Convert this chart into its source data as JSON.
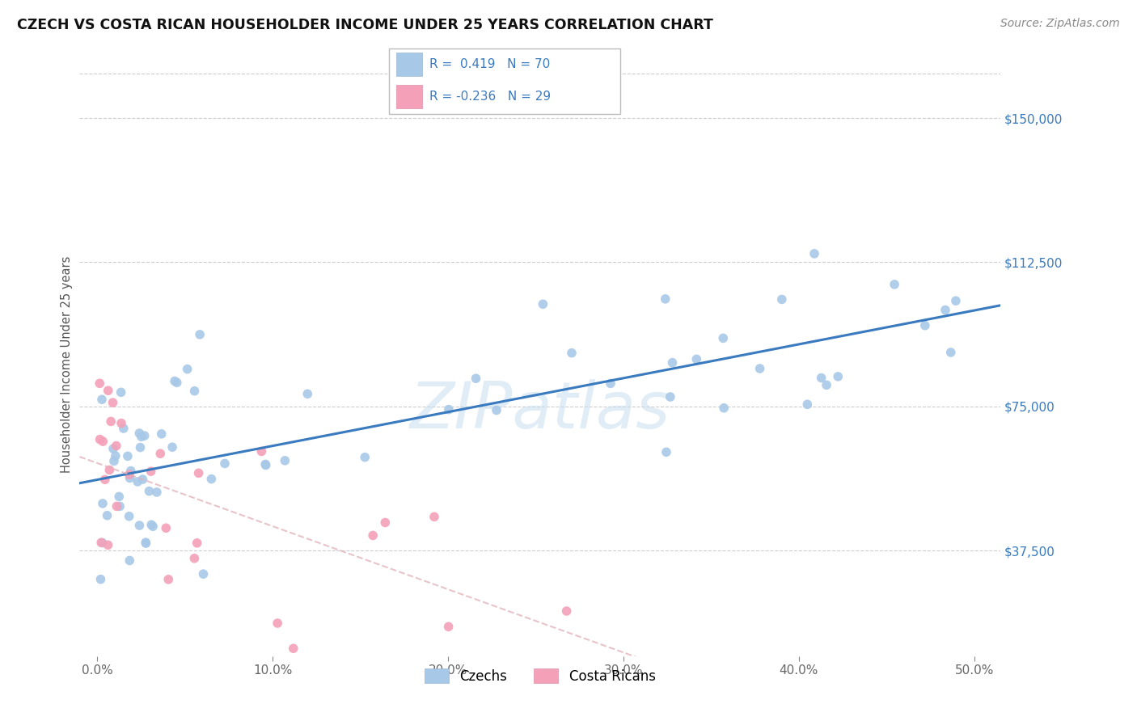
{
  "title": "CZECH VS COSTA RICAN HOUSEHOLDER INCOME UNDER 25 YEARS CORRELATION CHART",
  "source": "Source: ZipAtlas.com",
  "ylabel": "Householder Income Under 25 years",
  "xlabel_ticks": [
    "0.0%",
    "10.0%",
    "20.0%",
    "30.0%",
    "40.0%",
    "50.0%"
  ],
  "xlabel_vals": [
    0.0,
    10.0,
    20.0,
    30.0,
    40.0,
    50.0
  ],
  "ylabel_ticks": [
    "$37,500",
    "$75,000",
    "$112,500",
    "$150,000"
  ],
  "ylabel_vals": [
    37500,
    75000,
    112500,
    150000
  ],
  "xlim": [
    -1.0,
    51.5
  ],
  "ylim": [
    10000,
    162000
  ],
  "czech_color": "#a8c8e8",
  "cr_color": "#f4a0b8",
  "czech_line_color": "#3a7abf",
  "cr_line_color": "#e08090",
  "R_czech": 0.419,
  "N_czech": 70,
  "R_cr": -0.236,
  "N_cr": 29,
  "watermark": "ZIPatlas",
  "legend_label_czech": "Czechs",
  "legend_label_cr": "Costa Ricans",
  "background_color": "#ffffff",
  "grid_color": "#cccccc"
}
